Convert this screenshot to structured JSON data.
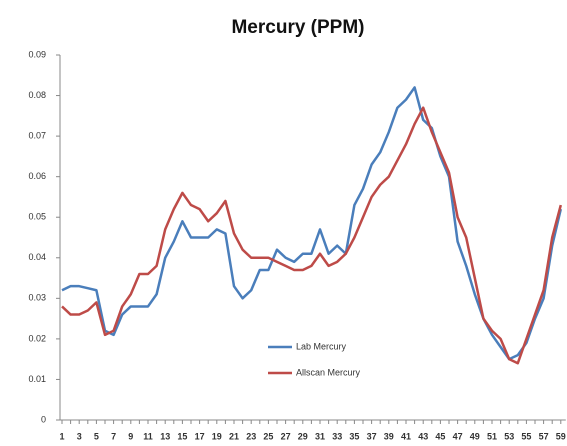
{
  "chart_data": {
    "type": "line",
    "title": "Mercury (PPM)",
    "categories": [
      1,
      null,
      3,
      null,
      5,
      null,
      7,
      null,
      9,
      null,
      11,
      null,
      13,
      null,
      15,
      null,
      17,
      null,
      19,
      null,
      21,
      null,
      23,
      null,
      25,
      null,
      27,
      null,
      29,
      null,
      31,
      null,
      33,
      null,
      35,
      null,
      37,
      null,
      39,
      null,
      41,
      null,
      43,
      null,
      45,
      null,
      47,
      null,
      49,
      null,
      51,
      null,
      53,
      null,
      55,
      null,
      57,
      null,
      59
    ],
    "series": [
      {
        "name": "Lab Mercury",
        "color": "#4a7ebb",
        "values": [
          0.032,
          0.033,
          0.033,
          0.0325,
          0.032,
          0.022,
          0.021,
          0.026,
          0.028,
          0.028,
          0.028,
          0.031,
          0.04,
          0.044,
          0.049,
          0.045,
          0.045,
          0.045,
          0.047,
          0.046,
          0.033,
          0.03,
          0.032,
          0.037,
          0.037,
          0.042,
          0.04,
          0.039,
          0.041,
          0.041,
          0.047,
          0.041,
          0.043,
          0.041,
          0.053,
          0.057,
          0.063,
          0.066,
          0.071,
          0.077,
          0.079,
          0.082,
          0.074,
          0.072,
          0.065,
          0.06,
          0.044,
          0.038,
          0.031,
          0.025,
          0.021,
          0.018,
          0.015,
          0.016,
          0.019,
          0.025,
          0.03,
          0.043,
          0.052
        ]
      },
      {
        "name": "Allscan Mercury",
        "color": "#be4b48",
        "values": [
          0.028,
          0.026,
          0.026,
          0.027,
          0.029,
          0.021,
          0.022,
          0.028,
          0.031,
          0.036,
          0.036,
          0.038,
          0.047,
          0.052,
          0.056,
          0.053,
          0.052,
          0.049,
          0.051,
          0.054,
          0.046,
          0.042,
          0.04,
          0.04,
          0.04,
          0.039,
          0.038,
          0.037,
          0.037,
          0.038,
          0.041,
          0.038,
          0.039,
          0.041,
          0.045,
          0.05,
          0.055,
          0.058,
          0.06,
          0.064,
          0.068,
          0.073,
          0.077,
          0.071,
          0.066,
          0.061,
          0.05,
          0.045,
          0.035,
          0.025,
          0.022,
          0.02,
          0.015,
          0.014,
          0.02,
          0.026,
          0.032,
          0.045,
          0.053
        ]
      }
    ],
    "ylim": [
      0,
      0.09
    ],
    "yticks": [
      0,
      0.01,
      0.02,
      0.03,
      0.04,
      0.05,
      0.06,
      0.07,
      0.08,
      0.09
    ],
    "grid": false,
    "legend": "center"
  }
}
